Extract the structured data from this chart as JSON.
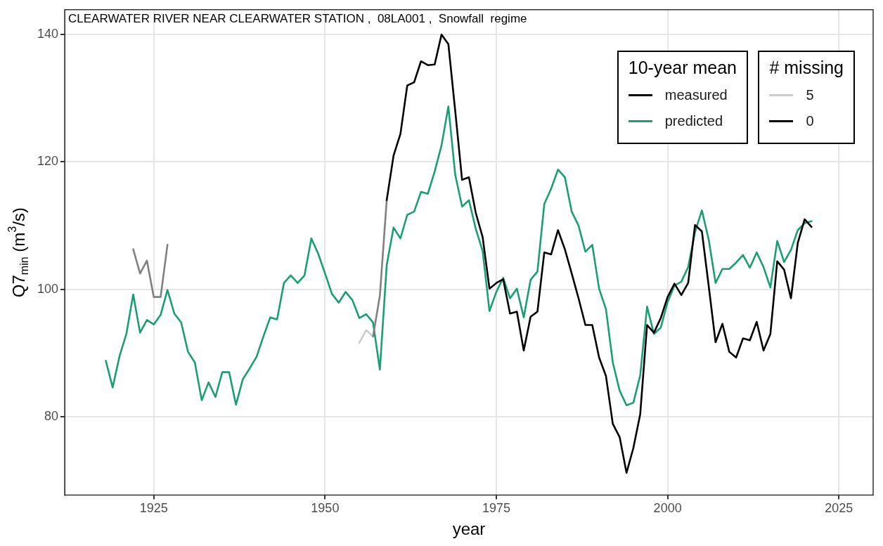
{
  "chart_data": {
    "type": "line",
    "title": "CLEARWATER RIVER NEAR CLEARWATER STATION ,  08LA001 ,  Snowfall  regime",
    "xlabel": "year",
    "ylabel": "Q7$_{min}$ (m$^{3}$/s)",
    "legend_title": "10-year mean",
    "annotations": [
      "# missing",
      "5",
      "0"
    ],
    "x": [
      1918,
      1919,
      1920,
      1921,
      1922,
      1923,
      1924,
      1925,
      1926,
      1927,
      1928,
      1929,
      1930,
      1931,
      1932,
      1933,
      1934,
      1935,
      1936,
      1937,
      1938,
      1939,
      1940,
      1941,
      1942,
      1943,
      1944,
      1945,
      1946,
      1947,
      1948,
      1949,
      1950,
      1951,
      1952,
      1953,
      1954,
      1955,
      1956,
      1957,
      1958,
      1959,
      1960,
      1961,
      1962,
      1963,
      1964,
      1965,
      1966,
      1967,
      1968,
      1969,
      1970,
      1971,
      1972,
      1973,
      1974,
      1975,
      1976,
      1977,
      1978,
      1979,
      1980,
      1981,
      1982,
      1983,
      1984,
      1985,
      1986,
      1987,
      1988,
      1989,
      1990,
      1991,
      1992,
      1993,
      1994,
      1995,
      1996,
      1997,
      1998,
      1999,
      2000,
      2001,
      2002,
      2003,
      2004,
      2005,
      2006,
      2007,
      2008,
      2009,
      2010,
      2011,
      2012,
      2013,
      2014,
      2015,
      2016,
      2017,
      2018,
      2019,
      2020,
      2021
    ],
    "series": [
      {
        "name": "measured",
        "color": "#000000",
        "values": [
          null,
          null,
          null,
          null,
          null,
          null,
          null,
          null,
          null,
          null,
          null,
          null,
          null,
          null,
          null,
          null,
          null,
          null,
          null,
          null,
          null,
          null,
          null,
          null,
          null,
          null,
          null,
          null,
          null,
          null,
          null,
          null,
          null,
          null,
          null,
          null,
          null,
          null,
          null,
          null,
          null,
          114,
          121,
          124.4,
          132,
          132.5,
          135.8,
          135.2,
          135.3,
          140,
          138.5,
          128,
          117.2,
          117.6,
          112,
          108.2,
          100.1,
          101,
          101.6,
          96.2,
          96.5,
          90.4,
          95.7,
          96.5,
          105.8,
          105.5,
          109.3,
          106.3,
          102.5,
          98.6,
          94.4,
          94.4,
          89.3,
          86.4,
          78.9,
          76.8,
          71.2,
          75.1,
          80.4,
          94.4,
          93.2,
          95.5,
          98.8,
          100.9,
          99.1,
          101,
          110.1,
          109.1,
          100.5,
          91.7,
          94.6,
          90.2,
          89.3,
          92.3,
          92,
          94.9,
          90.4,
          93,
          104.4,
          103.1,
          98.6,
          107.3,
          111,
          109.8
        ]
      },
      {
        "color": "#808080",
        "values": [
          null,
          null,
          null,
          null,
          106.3,
          102.5,
          104.5,
          98.8,
          98.8,
          107,
          null,
          null,
          null,
          null,
          null,
          null,
          null,
          null,
          null,
          null,
          null,
          null,
          null,
          null,
          null,
          null,
          null,
          null,
          null,
          null,
          null,
          null,
          null,
          null,
          null,
          null,
          null,
          null,
          null,
          92.6,
          99,
          114,
          null,
          null,
          null,
          null,
          null,
          null,
          null,
          null,
          null,
          null,
          null,
          null,
          null,
          null,
          null,
          null,
          null,
          null,
          null,
          null,
          null,
          null,
          null,
          null,
          null,
          null,
          null,
          null,
          null,
          null,
          null,
          null,
          null,
          null,
          null,
          null,
          null,
          null,
          null,
          null,
          null,
          null,
          null,
          null,
          null,
          null,
          null,
          null,
          null,
          null,
          null,
          null,
          null,
          null,
          null,
          null,
          null,
          null,
          null,
          null,
          null,
          null
        ]
      },
      {
        "color": "#cccccc",
        "x": [
          1955,
          1956,
          1957
        ],
        "values": [
          91.6,
          93.6,
          92.6
        ]
      },
      {
        "name": "predicted",
        "color": "#1b9e77",
        "values": [
          88.8,
          84.6,
          89.5,
          93,
          99.2,
          93.2,
          95.2,
          94.5,
          96,
          99.9,
          96.2,
          94.8,
          90.2,
          88.5,
          82.6,
          85.4,
          83.1,
          87,
          87,
          81.9,
          85.9,
          87.6,
          89.4,
          92.6,
          95.6,
          95.3,
          101,
          102.2,
          101,
          102.2,
          108,
          105.6,
          102.5,
          99.3,
          97.9,
          99.6,
          98.3,
          95.5,
          96.1,
          94.8,
          87.4,
          103.8,
          109.7,
          108,
          111.7,
          112.2,
          115.3,
          115,
          118.5,
          122.6,
          128.7,
          118,
          113,
          114,
          109.5,
          106,
          96.6,
          99.6,
          101.8,
          98.6,
          100.1,
          95.6,
          101.5,
          102.8,
          113.4,
          115.8,
          118.8,
          117.6,
          112.2,
          110,
          105.9,
          107,
          100.1,
          96.9,
          88.5,
          84.1,
          81.8,
          82.2,
          86.5,
          97.3,
          93,
          94,
          98,
          100.6,
          101.2,
          103.5,
          109,
          112.4,
          107.8,
          101,
          103.2,
          103.2,
          104.2,
          105.4,
          103.4,
          105.8,
          103.5,
          100.3,
          107.6,
          104.3,
          106.2,
          109.3,
          110.4,
          110.7
        ]
      }
    ],
    "xlim": [
      1912,
      2030
    ],
    "xticks": [
      1925,
      1950,
      1975,
      2000,
      2025
    ],
    "ylim": [
      67.7,
      143.9
    ],
    "yticks": [
      80,
      100,
      120,
      140
    ],
    "grid": true,
    "legend": "top right",
    "line_style": "solid",
    "marker": "none"
  }
}
